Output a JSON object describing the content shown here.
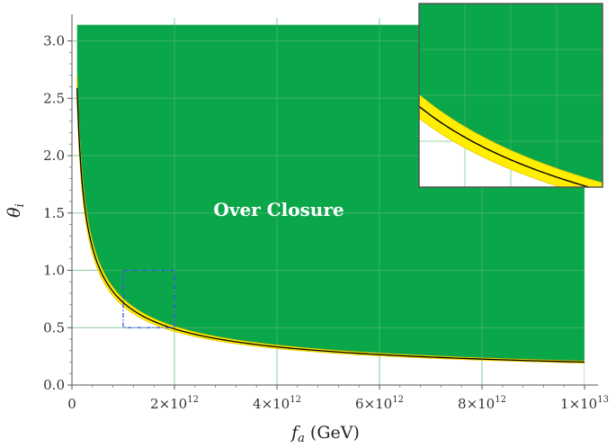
{
  "chart_data": {
    "type": "area",
    "xlabel": "f_a (GeV)",
    "xlabel_main": "f",
    "xlabel_sub": "a",
    "xlabel_unit": " (GeV)",
    "ylabel": "θ_i",
    "ylabel_main": "θ",
    "ylabel_sub": "i",
    "xlim": [
      0,
      10000000000000
    ],
    "ylim": [
      0,
      3.2
    ],
    "x_ticks": [
      {
        "value": 0,
        "label": "0"
      },
      {
        "value": 2000000000000,
        "mant": "2",
        "exp": "12"
      },
      {
        "value": 4000000000000,
        "mant": "4",
        "exp": "12"
      },
      {
        "value": 6000000000000,
        "mant": "6",
        "exp": "12"
      },
      {
        "value": 8000000000000,
        "mant": "8",
        "exp": "12"
      },
      {
        "value": 10000000000000,
        "mant": "1",
        "exp": "13"
      }
    ],
    "y_ticks": [
      {
        "value": 0.0,
        "label": "0.0"
      },
      {
        "value": 0.5,
        "label": "0.5"
      },
      {
        "value": 1.0,
        "label": "1.0"
      },
      {
        "value": 1.5,
        "label": "1.5"
      },
      {
        "value": 2.0,
        "label": "2.0"
      },
      {
        "value": 2.5,
        "label": "2.5"
      },
      {
        "value": 3.0,
        "label": "3.0"
      }
    ],
    "region": {
      "label": "Over Closure",
      "ymax": 3.14,
      "color": "#0aa64a"
    },
    "boundary_curve": {
      "relation": "theta ∝ f^-0.584",
      "x_range": [
        100000000000,
        10000000000000
      ],
      "points": [
        {
          "x": 100000000000,
          "y": 2.59
        },
        {
          "x": 1000000000000,
          "y": 0.68
        },
        {
          "x": 2000000000000,
          "y": 0.5
        },
        {
          "x": 10000000000000,
          "y": 0.2
        }
      ],
      "color": "#000000"
    },
    "band": {
      "color": "#ffee00",
      "edge_color": "#e9c400"
    },
    "zoom_box": {
      "x": [
        1000000000000,
        2000000000000
      ],
      "y": [
        0.5,
        1.0
      ],
      "color": "#3b55e8"
    },
    "grid": true
  }
}
